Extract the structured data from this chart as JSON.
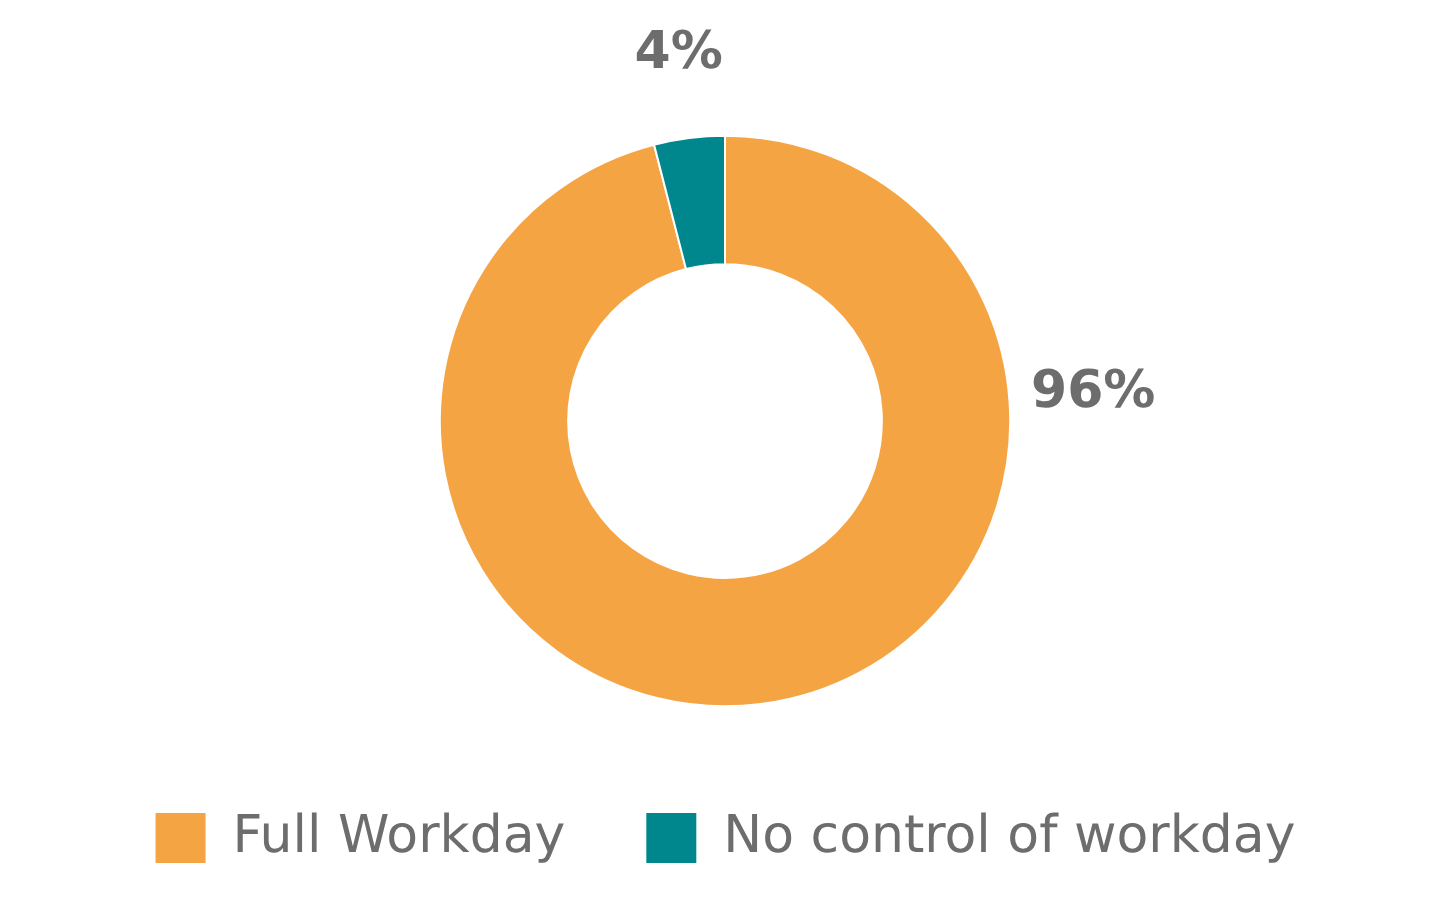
{
  "chart_data": {
    "type": "donut",
    "categories": [
      "Full Workday",
      "No control of workday"
    ],
    "values": [
      96,
      4
    ],
    "colors": [
      "#f5a444",
      "#00878e"
    ],
    "value_labels": [
      "96%",
      "4%"
    ],
    "legend": "bottom"
  }
}
